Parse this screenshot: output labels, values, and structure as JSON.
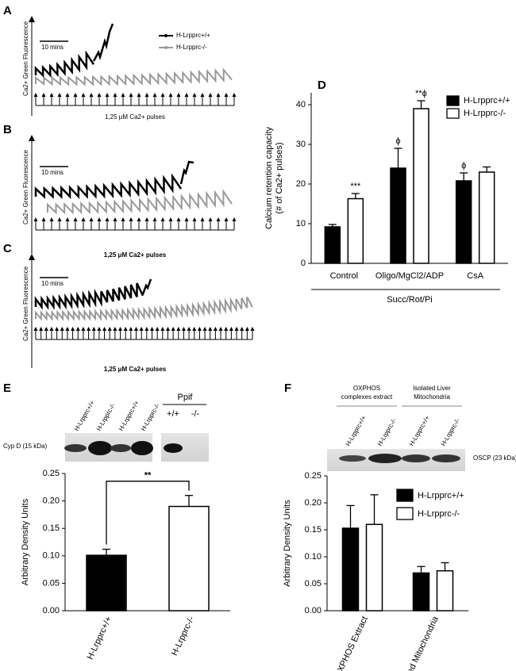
{
  "panels": {
    "a": {
      "label": "A",
      "scale": "10 mins",
      "ylabel": "Ca2+ Green Fluorescence",
      "xlabel": "1,25 μM Ca2+ pulses",
      "legend": [
        "H-Lrpprc+/+",
        "H-Lrpprc-/-"
      ]
    },
    "b": {
      "label": "B",
      "scale": "10 mins",
      "ylabel": "Ca2+ Green Fluorescence",
      "xlabel": "1,25 μM Ca2+ pulses"
    },
    "c": {
      "label": "C",
      "scale": "10 mins",
      "ylabel": "Ca2+ Green Fluorescence",
      "xlabel": "1,25 μM Ca2+ pulses"
    },
    "e_blot": {
      "lanes": [
        "H-Lrpprc+/+",
        "H-Lrpprc-/-",
        "H-Lrpprc+/+",
        "H-Lrpprc-/-"
      ],
      "band": "Cyp D (15 kDa)",
      "ppif": "Ppif",
      "ppif_lanes": [
        "+/+",
        "-/-"
      ]
    },
    "f_blot": {
      "groups": [
        [
          "OXPHOS",
          "complexes extract"
        ],
        [
          "Isolated Liver",
          "Mitochondria"
        ]
      ],
      "lanes": [
        "H-Lrpprc+/+",
        "H-Lrpprc-/-",
        "H-Lrpprc+/+",
        "H-Lrpprc-/-"
      ],
      "band": "OSCP (23 kDa)"
    }
  },
  "chart_data": [
    {
      "type": "bar",
      "panel": "D",
      "ylabel_lines": [
        "Calcium retention capacity",
        "(# of Ca2+ pulses)"
      ],
      "categories": [
        "Control",
        "Oligo/MgCl2/ADP",
        "CsA"
      ],
      "group_label": "Succ/Rot/Pi",
      "series": [
        {
          "name": "H-Lrpprc+/+",
          "color": "#000000",
          "values": [
            9.2,
            24,
            20.8
          ],
          "errors": [
            0.6,
            5,
            2
          ],
          "significance": [
            null,
            "ϕ",
            "ϕ"
          ]
        },
        {
          "name": "H-Lrpprc-/-",
          "color": "#ffffff",
          "values": [
            16.3,
            39,
            23
          ],
          "errors": [
            1.3,
            2,
            1.3
          ],
          "significance": [
            "***",
            "**ϕ",
            null
          ]
        }
      ],
      "ylim": [
        0,
        43
      ],
      "yticks": [
        0,
        10,
        20,
        30,
        40
      ],
      "legend": "upper right"
    },
    {
      "type": "bar",
      "panel": "E",
      "ylabel_lines": [
        "Arbitrary Density Units"
      ],
      "categories": [
        "H-Lrpprc+/+",
        "H-Lrpprc-/-"
      ],
      "values": [
        0.101,
        0.19
      ],
      "errors": [
        0.011,
        0.02
      ],
      "colors": [
        "#000000",
        "#ffffff"
      ],
      "significance": "**",
      "ylim": [
        0,
        0.25
      ],
      "yticks": [
        {
          "value": 0,
          "label": "0.00"
        },
        {
          "value": 0.05,
          "label": "0.05"
        },
        {
          "value": 0.1,
          "label": "0.10"
        },
        {
          "value": 0.15,
          "label": "0.15"
        },
        {
          "value": 0.2,
          "label": "0.20"
        },
        {
          "value": 0.25,
          "label": "0.25"
        }
      ]
    },
    {
      "type": "bar",
      "panel": "F",
      "ylabel_lines": [
        "Arbitrary Density Units"
      ],
      "categories": [
        "OXPHOS Extract",
        "Isolated Mitochondria"
      ],
      "series": [
        {
          "name": "H-Lrpprc+/+",
          "color": "#000000",
          "values": [
            0.153,
            0.07
          ],
          "errors": [
            0.042,
            0.012
          ]
        },
        {
          "name": "H-Lrpprc-/-",
          "color": "#ffffff",
          "values": [
            0.16,
            0.074
          ],
          "errors": [
            0.055,
            0.015
          ]
        }
      ],
      "ylim": [
        0,
        0.25
      ],
      "yticks": [
        {
          "value": 0,
          "label": "0.00"
        },
        {
          "value": 0.05,
          "label": "0.05"
        },
        {
          "value": 0.1,
          "label": "0.10"
        },
        {
          "value": 0.15,
          "label": "0.15"
        },
        {
          "value": 0.2,
          "label": "0.20"
        },
        {
          "value": 0.25,
          "label": "0.25"
        }
      ],
      "legend": "upper right"
    }
  ]
}
